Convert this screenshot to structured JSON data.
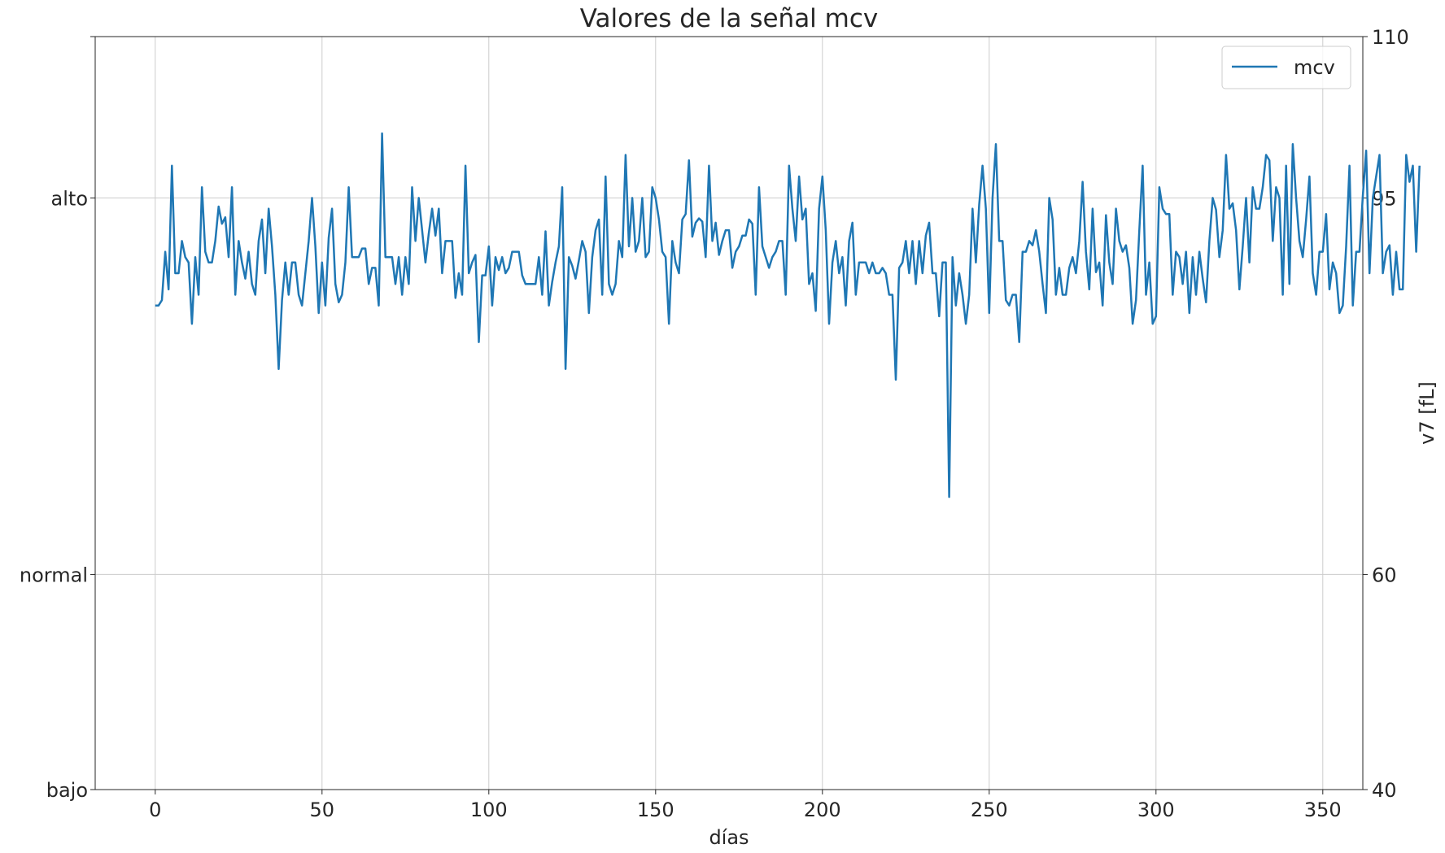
{
  "chart_data": {
    "type": "line",
    "title": "Valores de la señal mcv",
    "xlabel": "días",
    "ylabel_right": "v7 [fL]",
    "xlim": [
      -18,
      362
    ],
    "ylim": [
      40,
      110
    ],
    "x_ticks": [
      0,
      50,
      100,
      150,
      200,
      250,
      300,
      350
    ],
    "x_tick_labels": [
      "0",
      "50",
      "100",
      "150",
      "200",
      "250",
      "300",
      "350"
    ],
    "left_ticks": [
      {
        "value": 40,
        "label": "bajo"
      },
      {
        "value": 60,
        "label": "normal"
      },
      {
        "value": 95,
        "label": "alto"
      }
    ],
    "right_ticks": [
      {
        "value": 40,
        "label": "40"
      },
      {
        "value": 60,
        "label": "60"
      },
      {
        "value": 95,
        "label": "95"
      },
      {
        "value": 110,
        "label": "110"
      }
    ],
    "grid": true,
    "legend_position": "top-right",
    "series": [
      {
        "name": "mcv",
        "color": "#1f77b4",
        "x_start": 0,
        "x_step": 1,
        "values": [
          85,
          85,
          85.5,
          90,
          86.5,
          98,
          88,
          88,
          91,
          89.5,
          89,
          83.3,
          89.5,
          86,
          96,
          90,
          89,
          89,
          91,
          94.2,
          92.6,
          93.2,
          89.5,
          96,
          86,
          91,
          89,
          87.5,
          90,
          87,
          86,
          91,
          93,
          88,
          94,
          90.5,
          86,
          79.1,
          85.5,
          89,
          86,
          89,
          89,
          86,
          85,
          88,
          91,
          95,
          90.5,
          84.3,
          89,
          85,
          91.3,
          94,
          87,
          85.3,
          86,
          89,
          96,
          89.5,
          89.5,
          89.5,
          90.3,
          90.3,
          87,
          88.5,
          88.5,
          85,
          101,
          89.5,
          89.5,
          89.5,
          87,
          89.5,
          86,
          89.5,
          87,
          96,
          91,
          95,
          92,
          89,
          91.7,
          94,
          91.5,
          94,
          88,
          91,
          91,
          91,
          85.7,
          88,
          86,
          98,
          88,
          89,
          89.7,
          81.6,
          87.8,
          87.8,
          90.5,
          85,
          89.5,
          88.3,
          89.5,
          88,
          88.5,
          90,
          90,
          90,
          87.8,
          87,
          87,
          87,
          87,
          89.5,
          86,
          91.9,
          85,
          87.2,
          89,
          90.5,
          96,
          79.1,
          89.5,
          88.7,
          87.5,
          89.2,
          91,
          90,
          84.3,
          89.5,
          92,
          93,
          86,
          97,
          87,
          86,
          87,
          91,
          89.5,
          99,
          90.5,
          95,
          90,
          91,
          95,
          89.5,
          90,
          96,
          95,
          93,
          90,
          89.5,
          83.3,
          91,
          89,
          88,
          93,
          93.5,
          98.5,
          91.4,
          92.7,
          93.1,
          92.8,
          89.5,
          98,
          91,
          92.7,
          89.7,
          91,
          92,
          92,
          88.5,
          90,
          90.5,
          91.5,
          91.5,
          93,
          92.6,
          86,
          96,
          90.5,
          89.5,
          88.5,
          89.5,
          90,
          91,
          91,
          86,
          98,
          94,
          91,
          97,
          93,
          94,
          87,
          88,
          84.5,
          94,
          97,
          92,
          83.3,
          89,
          91,
          88,
          89.5,
          85,
          91,
          92.7,
          86,
          89,
          89,
          89,
          88,
          89,
          88,
          88,
          88.5,
          88,
          86,
          86,
          78.1,
          88.5,
          89,
          91,
          88,
          91,
          87,
          91,
          88,
          91.5,
          92.7,
          88,
          88,
          84,
          89,
          89,
          67.2,
          89.5,
          85,
          88,
          86,
          83.3,
          86,
          94,
          89,
          94.4,
          98,
          94,
          84.3,
          95,
          100,
          91,
          91,
          85.5,
          85,
          86,
          86,
          81.6,
          90,
          90,
          91,
          90.6,
          92,
          90,
          87,
          84.3,
          95,
          93,
          86,
          88.5,
          86,
          86,
          88.5,
          89.5,
          88,
          91,
          96.5,
          90,
          86.5,
          94,
          88.1,
          89,
          85,
          93.4,
          89,
          87,
          94,
          91,
          90,
          90.6,
          88.5,
          83.3,
          85.5,
          92,
          98,
          86,
          89,
          83.3,
          84,
          96,
          94,
          93.5,
          93.5,
          86,
          90,
          89.5,
          87,
          90,
          84.3,
          89.5,
          86,
          90,
          87.5,
          85.3,
          91,
          95,
          93.9,
          89.5,
          92,
          99,
          94,
          94.5,
          92,
          86.5,
          90.5,
          95,
          89,
          96,
          94,
          94,
          96,
          99,
          98.5,
          91,
          96,
          95,
          86,
          98,
          87,
          100,
          95,
          91,
          89.5,
          93,
          97,
          88,
          86,
          90,
          90,
          93.5,
          86.5,
          89,
          88,
          84.3,
          85,
          90.5,
          98,
          85,
          90,
          90,
          95.2,
          99.4,
          88,
          95,
          97,
          99,
          88,
          90,
          90.6,
          86,
          90,
          86.5,
          86.5,
          99,
          96.5,
          98,
          90,
          98
        ]
      }
    ]
  }
}
